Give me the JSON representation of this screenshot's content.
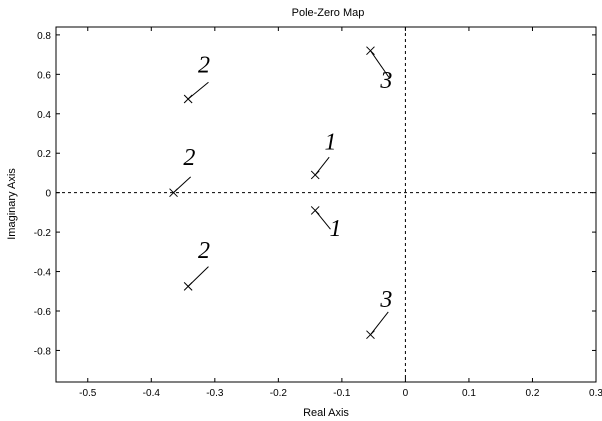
{
  "chart_data": {
    "type": "scatter",
    "title": "Pole-Zero Map",
    "xlabel": "Real Axis",
    "ylabel": "Imaginary Axis",
    "xlim": [
      -0.55,
      0.3
    ],
    "ylim": [
      -0.96,
      0.84
    ],
    "x_ticks": [
      "-0.5",
      "-0.4",
      "-0.3",
      "-0.2",
      "-0.1",
      "0",
      "0.1",
      "0.2",
      "0.3"
    ],
    "y_ticks": [
      "0.8",
      "0.6",
      "0.4",
      "0.2",
      "0",
      "-0.2",
      "-0.4",
      "-0.6",
      "-0.8"
    ],
    "marker": "x",
    "grid": false,
    "zero_lines": true,
    "poles": [
      {
        "x": -0.055,
        "y": 0.72
      },
      {
        "x": -0.342,
        "y": 0.475
      },
      {
        "x": -0.142,
        "y": 0.09
      },
      {
        "x": -0.365,
        "y": 0.0
      },
      {
        "x": -0.142,
        "y": -0.09
      },
      {
        "x": -0.342,
        "y": -0.475
      },
      {
        "x": -0.055,
        "y": -0.72
      }
    ],
    "annotations": [
      {
        "text": "3",
        "x": -0.055,
        "y": 0.72,
        "lx": -0.025,
        "ly": 0.58,
        "tx": -0.03,
        "ty": 0.53
      },
      {
        "text": "2",
        "x": -0.342,
        "y": 0.475,
        "lx": -0.31,
        "ly": 0.56,
        "tx": -0.317,
        "ty": 0.61
      },
      {
        "text": "1",
        "x": -0.142,
        "y": 0.09,
        "lx": -0.12,
        "ly": 0.18,
        "tx": -0.118,
        "ty": 0.22
      },
      {
        "text": "2",
        "x": -0.365,
        "y": 0.0,
        "lx": -0.338,
        "ly": 0.08,
        "tx": -0.34,
        "ty": 0.14
      },
      {
        "text": "1",
        "x": -0.142,
        "y": -0.09,
        "lx": -0.118,
        "ly": -0.185,
        "tx": -0.11,
        "ty": -0.22
      },
      {
        "text": "2",
        "x": -0.342,
        "y": -0.475,
        "lx": -0.31,
        "ly": -0.375,
        "tx": -0.317,
        "ty": -0.33
      },
      {
        "text": "3",
        "x": -0.055,
        "y": -0.72,
        "lx": -0.027,
        "ly": -0.605,
        "tx": -0.03,
        "ty": -0.58
      }
    ]
  }
}
